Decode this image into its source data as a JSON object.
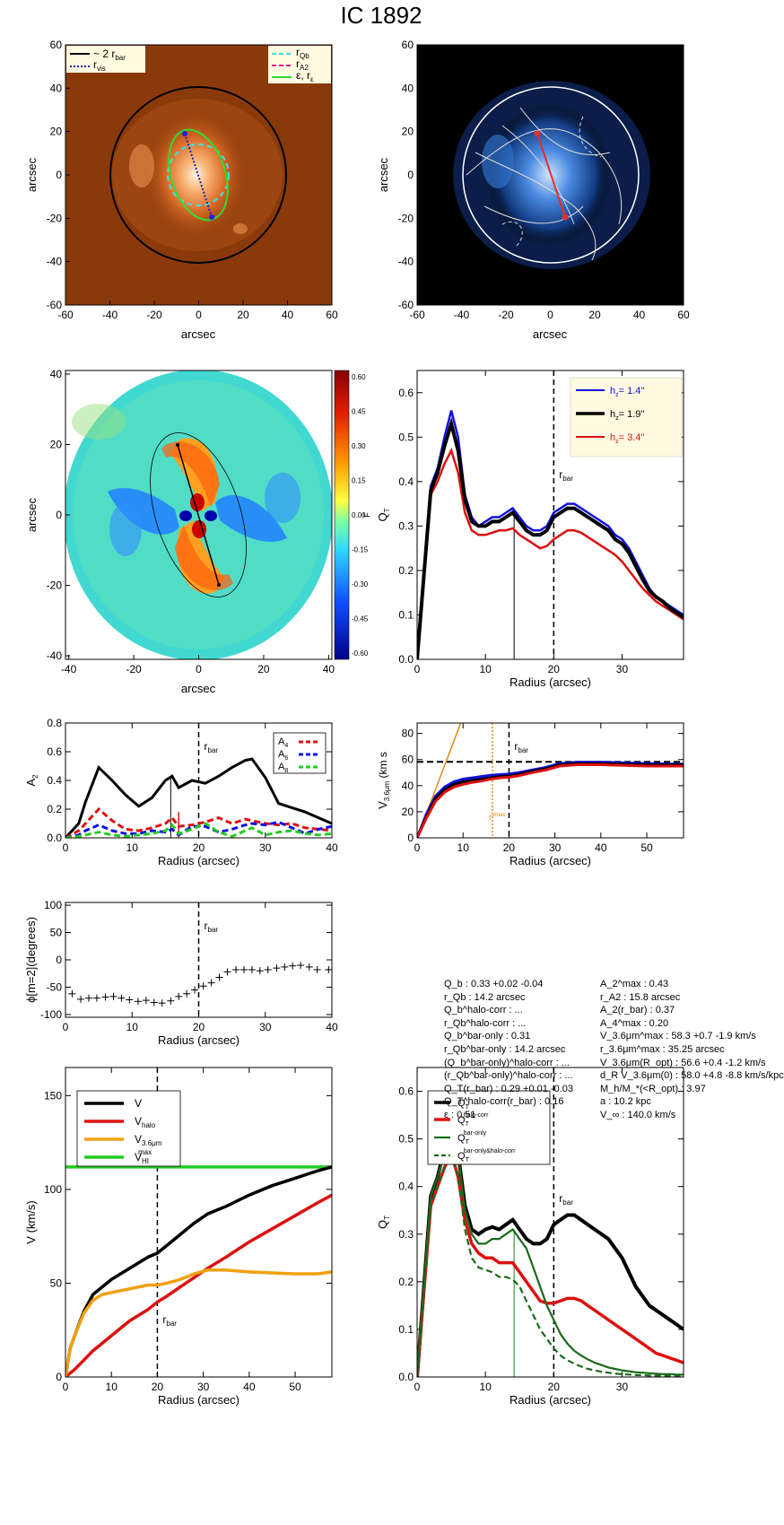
{
  "title": "IC 1892",
  "panels": {
    "image1": {
      "xlabel": "arcsec",
      "ylabel": "arcsec",
      "legend": [
        "~ 2 r",
        "bar",
        "r",
        "vis",
        "r",
        "Qb",
        "r",
        "A2",
        "ε, r",
        "ε"
      ]
    },
    "image2": {
      "xlabel": "arcsec",
      "ylabel": "arcsec"
    },
    "map": {
      "xlabel": "arcsec",
      "ylabel": "arcsec",
      "cbar_label": "F",
      "cbar_ticks": [
        "0.60",
        "0.45",
        "0.30",
        "0.15",
        "0.00",
        "-0.15",
        "-0.30",
        "-0.45",
        "-0.60"
      ]
    },
    "qt": {
      "xlabel": "Radius (arcsec)",
      "ylabel": "Q",
      "ylabel_sub": "T",
      "rbar_label": "r",
      "rbar_sub": "bar",
      "legend": [
        "h",
        "z",
        "=  1.4''",
        "=  1.9''",
        "=  3.4''"
      ]
    },
    "a2": {
      "xlabel": "Radius (arcsec)",
      "ylabel": "A",
      "ylabel_sub": "2",
      "rbar_label": "r",
      "rbar_sub": "bar",
      "legend": [
        "A",
        "4",
        "A",
        "6",
        "A",
        "8"
      ]
    },
    "vel": {
      "xlabel": "Radius (arcsec)",
      "ylabel": "V",
      "ylabel_sub": "3.6μm",
      "ylabel_unit": "(km s",
      "rbar_label": "r",
      "rbar_sub": "bar",
      "marker_label": "r",
      "marker_sub": "Vmax"
    },
    "phi": {
      "xlabel": "Radius (arcsec)",
      "ylabel": "ϕ[m=2](degrees)",
      "rbar_label": "r",
      "rbar_sub": "bar"
    },
    "vrot": {
      "xlabel": "Radius (arcsec)",
      "ylabel": "V (km/s)",
      "rbar_label": "r",
      "rbar_sub": "bar",
      "legend": [
        "V",
        "V",
        "halo",
        "V",
        "3.6μm",
        "V",
        "HI",
        "max"
      ]
    },
    "qtc": {
      "xlabel": "Radius (arcsec)",
      "ylabel": "Q",
      "ylabel_sub": "T",
      "rbar_label": "r",
      "rbar_sub": "bar",
      "legend": [
        "Q",
        "T",
        "Q",
        "T",
        "halo-corr",
        "Q",
        "T",
        "bar-only",
        "Q",
        "T",
        "bar-only&halo-corr"
      ]
    }
  },
  "table": {
    "left": [
      "Q_b :  0.33 +0.02 -0.04",
      "r_Qb :  14.2  arcsec",
      "Q_b^halo-corr : ...",
      "r_Qb^halo-corr : ...",
      "Q_b^bar-only :  0.31",
      "r_Qb^bar-only :  14.2 arcsec",
      "(Q_b^bar-only)^halo-corr : ...",
      "(r_Qb^bar-only)^halo-corr : ...",
      "Q_T(r_bar) :  0.29 +0.01 -0.03",
      "Q_T^halo-corr(r_bar) :  0.16",
      "ε :  0.51"
    ],
    "right": [
      "A_2^max :  0.43",
      "r_A2 :  15.8 arcsec",
      "A_2(r_bar) :  0.37",
      "A_4^max :  0.20",
      "V_3.6μm^max :  58.3 +0.7 -1.9 km/s",
      "r_3.6μm^max :  35.25 arcsec",
      "V_3.6μm(R_opt) :  56.6 +0.4 -1.2 km/s",
      "d_R V_3.6μm(0) :  58.0 +4.8 -8.8 km/s/kpc",
      "M_h/M_*(<R_opt) :  3.97",
      "a :  10.2 kpc",
      "V_∞ :  140.0 km/s"
    ]
  },
  "chart_data": [
    {
      "id": "qt",
      "type": "line",
      "xlim": [
        0,
        39
      ],
      "ylim": [
        0,
        0.65
      ],
      "xticks": [
        0,
        10,
        20,
        30
      ],
      "yticks": [
        0.0,
        0.1,
        0.2,
        0.3,
        0.4,
        0.5,
        0.6
      ],
      "x": [
        0,
        1,
        2,
        3,
        4,
        5,
        6,
        7,
        8,
        9,
        10,
        11,
        12,
        13,
        14,
        15,
        16,
        17,
        18,
        19,
        20,
        21,
        22,
        23,
        24,
        25,
        26,
        27,
        28,
        29,
        30,
        31,
        32,
        33,
        34,
        35,
        36,
        37,
        38,
        39
      ],
      "series": [
        {
          "name": "h_z=1.4''",
          "color": "#1010e0",
          "values": [
            0,
            0.2,
            0.39,
            0.43,
            0.5,
            0.56,
            0.5,
            0.37,
            0.32,
            0.3,
            0.31,
            0.32,
            0.32,
            0.33,
            0.34,
            0.32,
            0.3,
            0.29,
            0.29,
            0.3,
            0.33,
            0.34,
            0.35,
            0.35,
            0.34,
            0.33,
            0.32,
            0.31,
            0.3,
            0.28,
            0.27,
            0.25,
            0.22,
            0.19,
            0.16,
            0.14,
            0.13,
            0.12,
            0.11,
            0.1
          ]
        },
        {
          "name": "h_z=1.9''",
          "color": "#000000",
          "values": [
            0,
            0.19,
            0.38,
            0.42,
            0.48,
            0.53,
            0.47,
            0.36,
            0.31,
            0.3,
            0.3,
            0.31,
            0.31,
            0.32,
            0.33,
            0.31,
            0.29,
            0.28,
            0.28,
            0.29,
            0.32,
            0.33,
            0.34,
            0.34,
            0.33,
            0.32,
            0.31,
            0.3,
            0.29,
            0.27,
            0.26,
            0.24,
            0.21,
            0.18,
            0.155,
            0.14,
            0.13,
            0.115,
            0.105,
            0.095
          ]
        },
        {
          "name": "h_z=3.4''",
          "color": "#dd1010",
          "values": [
            0,
            0.18,
            0.37,
            0.4,
            0.44,
            0.47,
            0.42,
            0.33,
            0.29,
            0.28,
            0.28,
            0.285,
            0.29,
            0.29,
            0.295,
            0.28,
            0.27,
            0.26,
            0.25,
            0.255,
            0.27,
            0.28,
            0.29,
            0.29,
            0.285,
            0.275,
            0.265,
            0.255,
            0.245,
            0.235,
            0.22,
            0.2,
            0.18,
            0.16,
            0.145,
            0.13,
            0.12,
            0.11,
            0.1,
            0.09
          ]
        }
      ],
      "vline_solid": 14.2,
      "vline_dashed": 20
    },
    {
      "id": "a2",
      "type": "line",
      "xlim": [
        0,
        40
      ],
      "ylim": [
        0,
        0.8
      ],
      "xticks": [
        0,
        10,
        20,
        30,
        40
      ],
      "yticks": [
        0.0,
        0.2,
        0.4,
        0.6,
        0.8
      ],
      "x": [
        0,
        2,
        3,
        5,
        7,
        9,
        11,
        13,
        15,
        16,
        17,
        19,
        21,
        23,
        25,
        27,
        28,
        30,
        32,
        34,
        36,
        38,
        40
      ],
      "series": [
        {
          "name": "A2",
          "color": "#000000",
          "dash": false,
          "values": [
            0,
            0.1,
            0.25,
            0.49,
            0.4,
            0.3,
            0.22,
            0.28,
            0.4,
            0.43,
            0.35,
            0.4,
            0.38,
            0.43,
            0.49,
            0.54,
            0.55,
            0.42,
            0.24,
            0.21,
            0.18,
            0.14,
            0.1
          ]
        },
        {
          "name": "A4",
          "color": "#dd1010",
          "dash": true,
          "values": [
            0,
            0.05,
            0.1,
            0.2,
            0.12,
            0.06,
            0.05,
            0.07,
            0.1,
            0.14,
            0.08,
            0.09,
            0.11,
            0.14,
            0.1,
            0.13,
            0.12,
            0.1,
            0.09,
            0.1,
            0.07,
            0.06,
            0.05
          ]
        },
        {
          "name": "A6",
          "color": "#1010e0",
          "dash": true,
          "values": [
            0,
            0.02,
            0.05,
            0.09,
            0.05,
            0.03,
            0.03,
            0.05,
            0.04,
            0.06,
            0.02,
            0.08,
            0.08,
            0.04,
            0.06,
            0.09,
            0.1,
            0.09,
            0.11,
            0.07,
            0.03,
            0.06,
            0.08
          ]
        },
        {
          "name": "A8",
          "color": "#22cc22",
          "dash": true,
          "values": [
            0,
            0.01,
            0.02,
            0.04,
            0.02,
            0.01,
            0.02,
            0.03,
            0.05,
            0.09,
            0.03,
            0.06,
            0.1,
            0.04,
            0.01,
            0.05,
            0.07,
            0.02,
            0.04,
            0.05,
            0.03,
            0.02,
            0.03
          ]
        }
      ],
      "vline_solid": 15.8,
      "vline_solid2": 17,
      "vline_dashed": 20
    },
    {
      "id": "vel",
      "type": "line",
      "xlim": [
        0,
        58
      ],
      "ylim": [
        0,
        88
      ],
      "xticks": [
        0,
        10,
        20,
        30,
        40,
        50
      ],
      "yticks": [
        0,
        20,
        40,
        60,
        80
      ],
      "x": [
        0,
        2,
        4,
        6,
        8,
        10,
        12,
        14,
        16,
        18,
        20,
        22,
        25,
        28,
        31,
        35,
        40,
        45,
        50,
        55,
        58
      ],
      "series": [
        {
          "name": "upper",
          "color": "#1010e0",
          "values": [
            0,
            18,
            32,
            39,
            43,
            45,
            46,
            47,
            48,
            48.5,
            49,
            50,
            52,
            54,
            57,
            58,
            58,
            57.5,
            57,
            56.5,
            56.5
          ]
        },
        {
          "name": "mid",
          "color": "#000000",
          "values": [
            0,
            16,
            30,
            37,
            41,
            43,
            44,
            45,
            46,
            47,
            47.5,
            48.5,
            51,
            53,
            56,
            57,
            57,
            56.5,
            56,
            56,
            56
          ]
        },
        {
          "name": "lower",
          "color": "#dd1010",
          "values": [
            0,
            15,
            28,
            35,
            39,
            41,
            42.5,
            43.5,
            45,
            46,
            46.5,
            47.5,
            50,
            52,
            55,
            56,
            56,
            55.5,
            55,
            55,
            55
          ]
        }
      ],
      "hline": 58.3,
      "line_orange": [
        [
          0,
          0
        ],
        [
          9.5,
          88
        ]
      ],
      "vline_dotted": 16.4,
      "vline_dashed": 20
    },
    {
      "id": "phi",
      "type": "scatter",
      "xlim": [
        0,
        40
      ],
      "ylim": [
        -105,
        105
      ],
      "xticks": [
        0,
        10,
        20,
        30,
        40
      ],
      "yticks": [
        -100,
        -50,
        0,
        50,
        100
      ],
      "x": [
        1,
        2.3,
        3.5,
        4.7,
        6,
        7.2,
        8.4,
        9.6,
        10.9,
        12.1,
        13.3,
        14.5,
        15.8,
        17,
        18.2,
        19.4,
        20.7,
        21.9,
        23.1,
        24.3,
        25.6,
        26.8,
        28,
        29.2,
        30.4,
        31.7,
        32.9,
        34.1,
        35.3,
        36.6,
        37.8,
        39.5
      ],
      "y": [
        -62,
        -72,
        -70,
        -70,
        -68,
        -67,
        -70,
        -73,
        -76,
        -74,
        -78,
        -79,
        -75,
        -67,
        -62,
        -55,
        -48,
        -42,
        -32,
        -22,
        -18,
        -18,
        -18,
        -20,
        -18,
        -15,
        -13,
        -11,
        -10,
        -13,
        -18,
        -18
      ],
      "vline_dashed": 20
    },
    {
      "id": "vrot",
      "type": "line",
      "xlim": [
        0,
        58
      ],
      "ylim": [
        0,
        165
      ],
      "xticks": [
        0,
        10,
        20,
        30,
        40,
        50
      ],
      "yticks": [
        0,
        50,
        100,
        150
      ],
      "x": [
        0,
        1,
        2,
        4,
        6,
        8,
        10,
        12,
        14,
        16,
        18,
        20,
        22,
        25,
        28,
        31,
        35,
        40,
        45,
        50,
        55,
        58
      ],
      "series": [
        {
          "name": "V",
          "color": "#000000",
          "values": [
            0,
            15,
            22,
            35,
            44,
            48,
            52,
            55,
            58,
            61,
            64,
            66,
            70,
            76,
            82,
            87,
            91,
            97,
            102,
            106,
            110,
            112
          ]
        },
        {
          "name": "V_halo",
          "color": "#dd1010",
          "values": [
            0,
            2,
            4,
            9,
            14,
            18,
            22,
            26,
            30,
            33,
            36,
            40,
            43,
            48,
            53,
            58,
            64,
            72,
            79,
            86,
            93,
            97
          ]
        },
        {
          "name": "V_3.6um",
          "color": "#f0a010",
          "values": [
            0,
            15,
            22,
            34,
            41,
            44,
            45,
            46,
            47,
            48,
            49,
            49,
            50,
            52,
            55,
            57,
            57,
            56,
            55.5,
            55,
            55,
            56
          ]
        }
      ],
      "hline": 112,
      "hline_color": "#22cc22",
      "vline_dashed": 20
    },
    {
      "id": "qtc",
      "type": "line",
      "xlim": [
        0,
        39
      ],
      "ylim": [
        0,
        0.65
      ],
      "xticks": [
        0,
        10,
        20,
        30
      ],
      "yticks": [
        0.0,
        0.1,
        0.2,
        0.3,
        0.4,
        0.5,
        0.6
      ],
      "x": [
        0,
        1,
        2,
        3,
        4,
        5,
        6,
        7,
        8,
        9,
        10,
        11,
        12,
        13,
        14,
        15,
        16,
        17,
        18,
        19,
        20,
        21,
        22,
        23,
        24,
        25,
        26,
        27,
        28,
        29,
        30,
        31,
        32,
        33,
        34,
        35,
        36,
        37,
        38,
        39
      ],
      "series": [
        {
          "name": "Q_T",
          "color": "#000000",
          "dash": false,
          "width": 4,
          "values": [
            0,
            0.19,
            0.38,
            0.42,
            0.48,
            0.53,
            0.47,
            0.36,
            0.31,
            0.3,
            0.31,
            0.315,
            0.31,
            0.32,
            0.33,
            0.31,
            0.29,
            0.28,
            0.28,
            0.29,
            0.32,
            0.33,
            0.34,
            0.34,
            0.33,
            0.32,
            0.31,
            0.3,
            0.29,
            0.27,
            0.25,
            0.22,
            0.19,
            0.17,
            0.15,
            0.14,
            0.13,
            0.12,
            0.11,
            0.1
          ]
        },
        {
          "name": "Q_T halo-corr",
          "color": "#dd1010",
          "dash": false,
          "width": 3.5,
          "values": [
            0,
            0.18,
            0.36,
            0.4,
            0.44,
            0.47,
            0.42,
            0.33,
            0.28,
            0.26,
            0.25,
            0.25,
            0.24,
            0.24,
            0.24,
            0.22,
            0.2,
            0.18,
            0.16,
            0.155,
            0.155,
            0.16,
            0.165,
            0.165,
            0.16,
            0.15,
            0.14,
            0.13,
            0.12,
            0.11,
            0.1,
            0.09,
            0.08,
            0.07,
            0.06,
            0.05,
            0.045,
            0.04,
            0.035,
            0.03
          ]
        },
        {
          "name": "Q_T bar-only",
          "color": "#1a6a1a",
          "dash": false,
          "width": 2.2,
          "values": [
            0,
            0.19,
            0.38,
            0.42,
            0.47,
            0.52,
            0.47,
            0.35,
            0.3,
            0.28,
            0.28,
            0.29,
            0.29,
            0.3,
            0.31,
            0.29,
            0.27,
            0.23,
            0.19,
            0.15,
            0.12,
            0.09,
            0.07,
            0.055,
            0.045,
            0.037,
            0.03,
            0.025,
            0.02,
            0.017,
            0.014,
            0.012,
            0.01,
            0.009,
            0.008,
            0.007,
            0.006,
            0.006,
            0.005,
            0.005
          ]
        },
        {
          "name": "Q_T bar-only&halo-corr",
          "color": "#1a6a1a",
          "dash": true,
          "width": 2.2,
          "values": [
            0,
            0.18,
            0.36,
            0.4,
            0.44,
            0.47,
            0.42,
            0.31,
            0.25,
            0.23,
            0.225,
            0.22,
            0.21,
            0.21,
            0.205,
            0.19,
            0.16,
            0.13,
            0.1,
            0.08,
            0.06,
            0.045,
            0.035,
            0.028,
            0.022,
            0.017,
            0.014,
            0.011,
            0.009,
            0.007,
            0.006,
            0.005,
            0.004,
            0.004,
            0.003,
            0.003,
            0.003,
            0.002,
            0.002,
            0.002
          ]
        }
      ],
      "vline_solid": 14.2,
      "vline_dashed": 20
    }
  ]
}
